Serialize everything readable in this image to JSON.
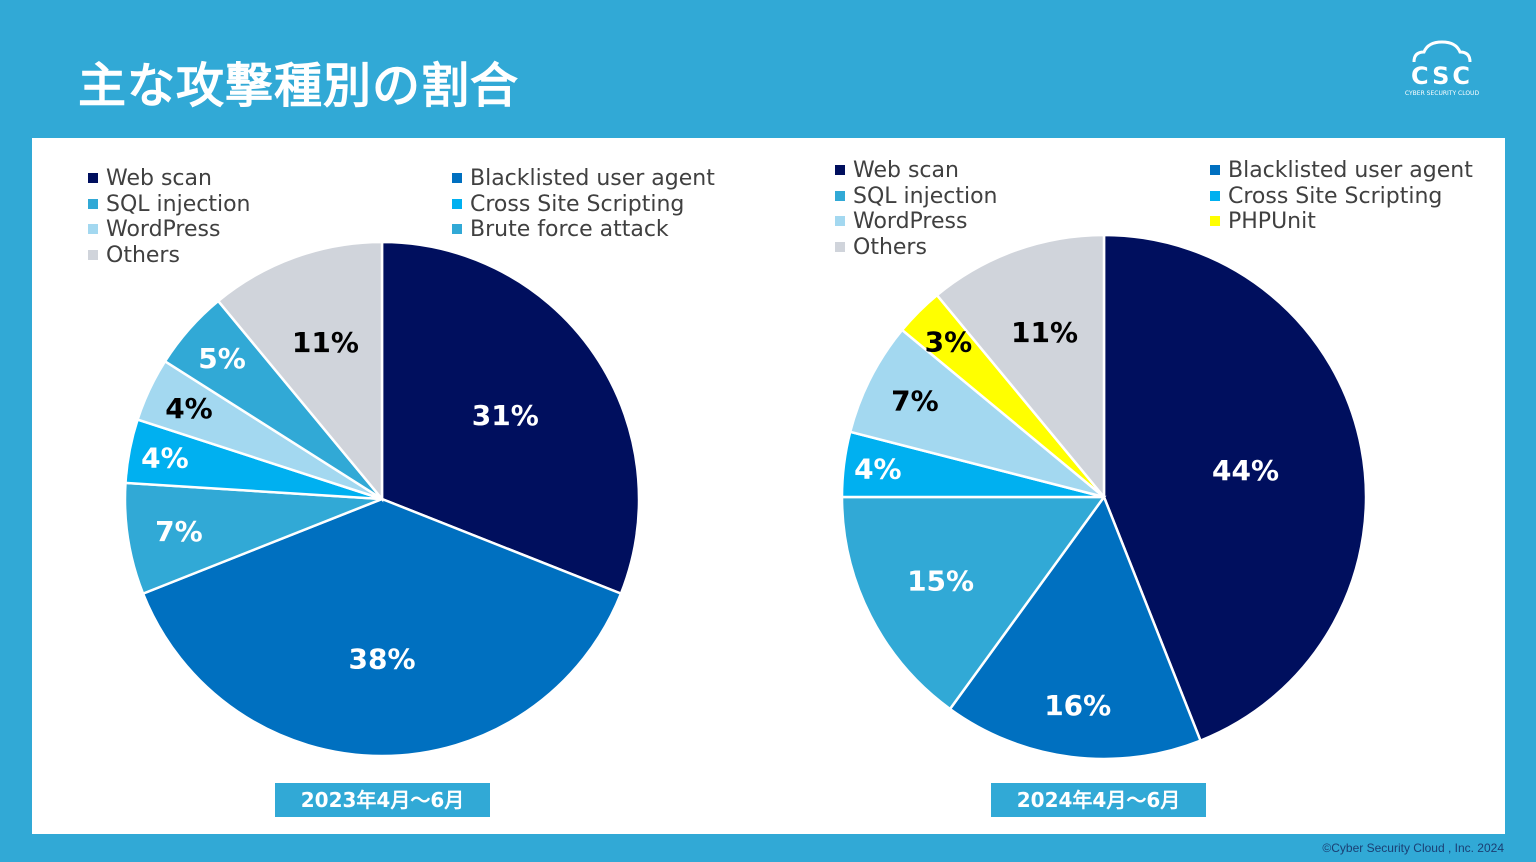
{
  "title": "主な攻撃種別の割合",
  "logo": {
    "text": "CSC",
    "tagline": "CYBER SECURITY CLOUD"
  },
  "copyright": "©Cyber Security Cloud , Inc. 2024",
  "chart_data": [
    {
      "type": "pie",
      "period": "2023年4月～6月",
      "categories": [
        "Web scan",
        "Blacklisted user agent",
        "SQL injection",
        "Cross Site Scripting",
        "WordPress",
        "Brute force attack",
        "Others"
      ],
      "values": [
        31,
        38,
        7,
        4,
        4,
        5,
        11
      ],
      "labels": [
        "31%",
        "38%",
        "7%",
        "4%",
        "4%",
        "5%",
        "11%"
      ],
      "colors": [
        "#000f5e",
        "#0070c0",
        "#31a9d6",
        "#00b0f0",
        "#a3d8f0",
        "#31a9d6",
        "#d0d4db"
      ],
      "label_colors": [
        "#ffffff",
        "#ffffff",
        "#ffffff",
        "#ffffff",
        "#000000",
        "#ffffff",
        "#000000"
      ],
      "legend": {
        "left": [
          "Web scan",
          "SQL injection",
          "WordPress",
          "Others"
        ],
        "left_colors": [
          "#000f5e",
          "#31a9d6",
          "#a3d8f0",
          "#d0d4db"
        ],
        "right": [
          "Blacklisted user agent",
          "Cross Site Scripting",
          "Brute force attack"
        ],
        "right_colors": [
          "#0070c0",
          "#00b0f0",
          "#31a9d6"
        ]
      }
    },
    {
      "type": "pie",
      "period": "2024年4月～6月",
      "categories": [
        "Web scan",
        "Blacklisted user agent",
        "SQL injection",
        "Cross Site Scripting",
        "WordPress",
        "PHPUnit",
        "Others"
      ],
      "values": [
        44,
        16,
        15,
        4,
        7,
        3,
        11
      ],
      "labels": [
        "44%",
        "16%",
        "15%",
        "4%",
        "7%",
        "3%",
        "11%"
      ],
      "colors": [
        "#000f5e",
        "#0070c0",
        "#31a9d6",
        "#00b0f0",
        "#a3d8f0",
        "#ffff00",
        "#d0d4db"
      ],
      "label_colors": [
        "#ffffff",
        "#ffffff",
        "#ffffff",
        "#ffffff",
        "#000000",
        "#000000",
        "#000000"
      ],
      "legend": {
        "left": [
          "Web scan",
          "SQL injection",
          "WordPress",
          "Others"
        ],
        "left_colors": [
          "#000f5e",
          "#31a9d6",
          "#a3d8f0",
          "#d0d4db"
        ],
        "right": [
          "Blacklisted user agent",
          "Cross Site Scripting",
          "PHPUnit"
        ],
        "right_colors": [
          "#0070c0",
          "#00b0f0",
          "#ffff00"
        ]
      }
    }
  ]
}
